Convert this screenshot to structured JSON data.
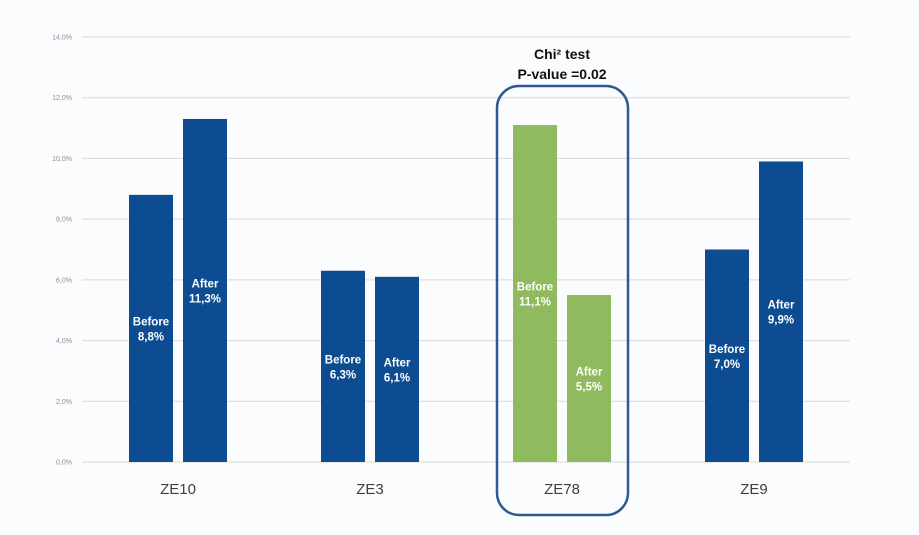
{
  "chart_data": {
    "type": "bar",
    "title": "",
    "xlabel": "",
    "ylabel": "",
    "ylim": [
      0,
      14
    ],
    "yticks": [
      "0,0%",
      "2,0%",
      "4,0%",
      "6,0%",
      "8,0%",
      "10,0%",
      "12,0%",
      "14,0%"
    ],
    "grid": true,
    "categories": [
      "ZE10",
      "ZE3",
      "ZE78",
      "ZE9"
    ],
    "series": [
      {
        "name": "Before",
        "values": [
          8.8,
          6.3,
          11.1,
          7.0
        ],
        "labels": [
          "8,8%",
          "6,3%",
          "11,1%",
          "7,0%"
        ]
      },
      {
        "name": "After",
        "values": [
          11.3,
          6.1,
          5.5,
          9.9
        ],
        "labels": [
          "11,3%",
          "6,1%",
          "5,5%",
          "9,9%"
        ]
      }
    ],
    "highlight_category": "ZE78",
    "annotation": {
      "line1": "Chi² test",
      "line2": "P-value =0.02"
    },
    "colors": {
      "default": "#0e4c92",
      "highlight": "#8fbb5e",
      "box": "#2f5a8f",
      "grid": "#d9d9d9"
    }
  }
}
